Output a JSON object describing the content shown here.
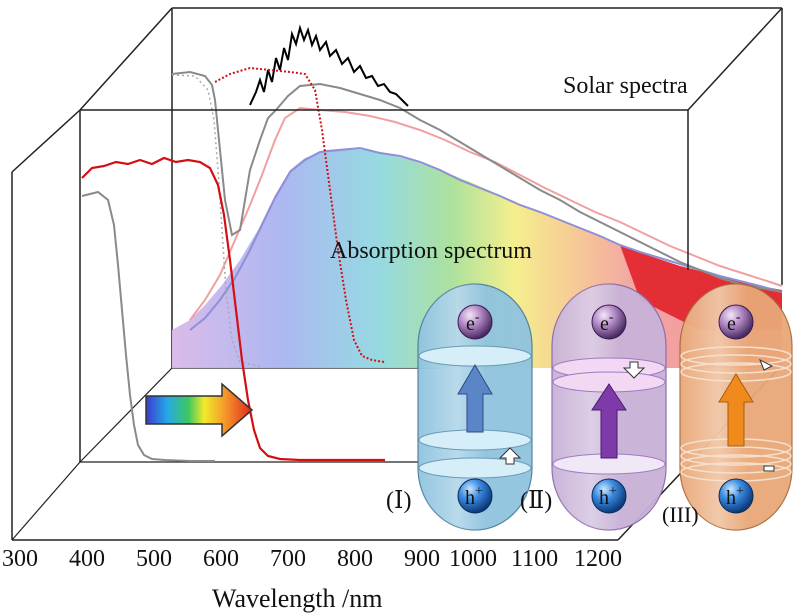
{
  "labels": {
    "solar": "Solar spectra",
    "absorption": "Absorption spectrum",
    "xlabel": "Wavelength /nm"
  },
  "ticks": [
    "300",
    "400",
    "500",
    "600",
    "700",
    "800",
    "900",
    "1000",
    "1100",
    "1200"
  ],
  "capsules": [
    {
      "id": "I",
      "label": "(Ⅰ)",
      "electron": "e",
      "electron_sup": "-",
      "hole": "h",
      "hole_sup": "+",
      "fill": "#8fc3df",
      "arrow": "#5a86c8"
    },
    {
      "id": "II",
      "label": "(Ⅱ)",
      "electron": "e",
      "electron_sup": "-",
      "hole": "h",
      "hole_sup": "+",
      "fill": "#c8b2d8",
      "arrow": "#7d3aa8"
    },
    {
      "id": "III",
      "label": "(III)",
      "electron": "e",
      "electron_sup": "-",
      "hole": "h",
      "hole_sup": "+",
      "fill": "#e9a878",
      "arrow": "#f08a1c"
    }
  ],
  "colors": {
    "frame": "#222222",
    "red_curve": "#d40f14",
    "gray_curve": "#8a8a8a",
    "black_curve": "#000000",
    "pink_curve": "#f0a0a0",
    "blue_curve": "#8f8fd8",
    "absorption_fill": "#f08c8c"
  }
}
